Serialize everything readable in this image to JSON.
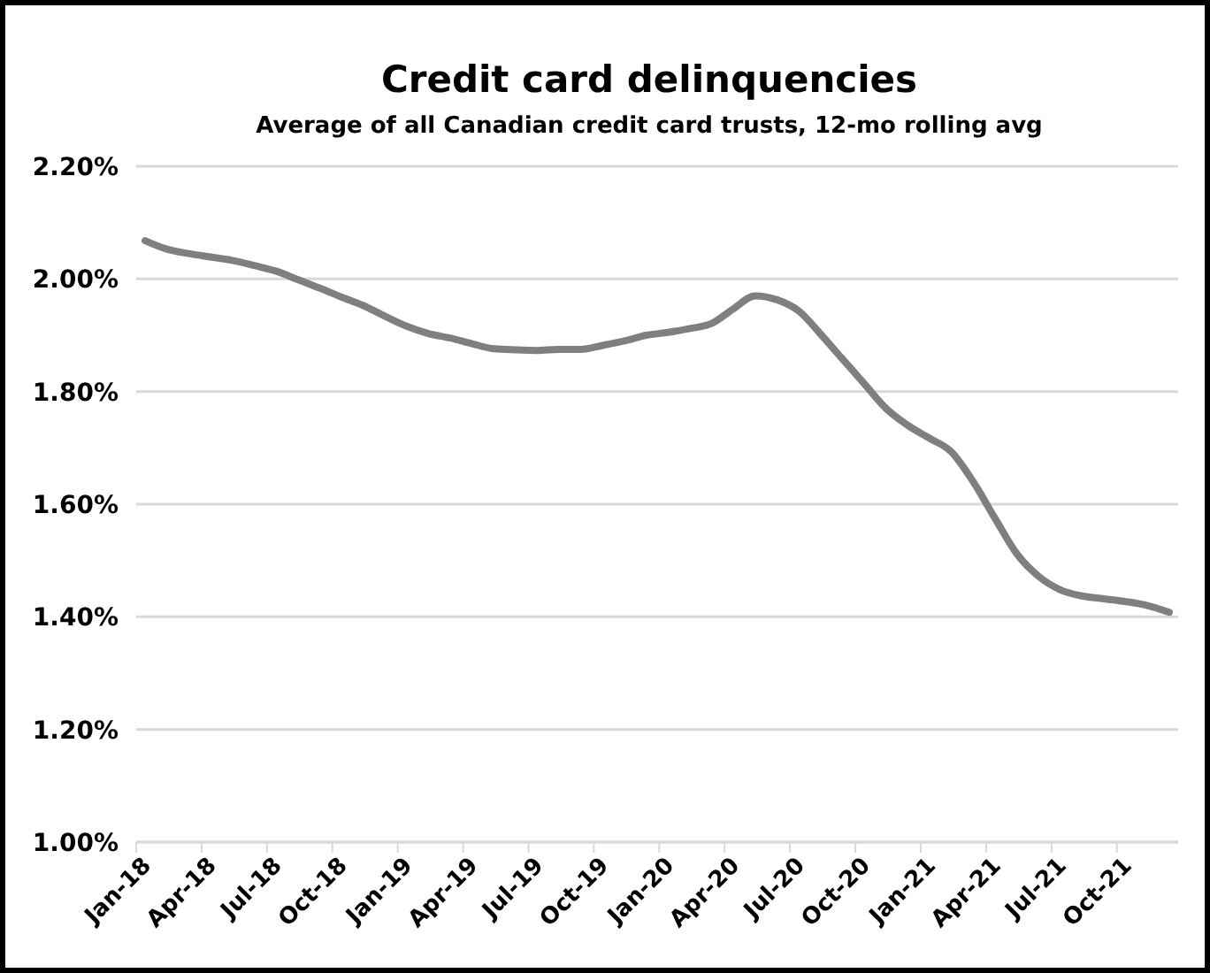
{
  "chart_data": {
    "type": "line",
    "title": "Credit card delinquencies",
    "subtitle": "Average of all Canadian credit card trusts, 12-mo rolling avg",
    "categories": [
      "Jan-18",
      null,
      null,
      "Apr-18",
      null,
      null,
      "Jul-18",
      null,
      null,
      "Oct-18",
      null,
      null,
      "Jan-19",
      null,
      null,
      "Apr-19",
      null,
      null,
      "Jul-19",
      null,
      null,
      "Oct-19",
      null,
      null,
      "Jan-20",
      null,
      null,
      "Apr-20",
      null,
      null,
      "Jul-20",
      null,
      null,
      "Oct-20",
      null,
      null,
      "Jan-21",
      null,
      null,
      "Apr-21",
      null,
      null,
      "Jul-21",
      null,
      null,
      "Oct-21",
      null,
      null
    ],
    "series": [
      {
        "color": "#7f7f7f",
        "values": [
          2.068,
          2.053,
          2.045,
          2.039,
          2.033,
          2.024,
          2.014,
          1.999,
          1.984,
          1.968,
          1.953,
          1.934,
          1.916,
          1.903,
          1.895,
          1.885,
          1.876,
          1.874,
          1.873,
          1.875,
          1.875,
          1.882,
          1.89,
          1.9,
          1.905,
          1.912,
          1.921,
          1.947,
          1.97,
          1.963,
          1.943,
          1.902,
          1.858,
          1.814,
          1.77,
          1.74,
          1.717,
          1.693,
          1.64,
          1.575,
          1.512,
          1.472,
          1.448,
          1.437,
          1.432,
          1.427,
          1.42,
          1.408
        ]
      }
    ],
    "ylim": [
      1.0,
      2.2
    ],
    "yticks": [
      {
        "value": 1.0,
        "label": "1.00%"
      },
      {
        "value": 1.2,
        "label": "1.20%"
      },
      {
        "value": 1.4,
        "label": "1.40%"
      },
      {
        "value": 1.6,
        "label": "1.60%"
      },
      {
        "value": 1.8,
        "label": "1.80%"
      },
      {
        "value": 2.0,
        "label": "2.00%"
      },
      {
        "value": 2.2,
        "label": "2.20%"
      }
    ],
    "grid": "y",
    "marker": "none",
    "line_style": "solid"
  }
}
